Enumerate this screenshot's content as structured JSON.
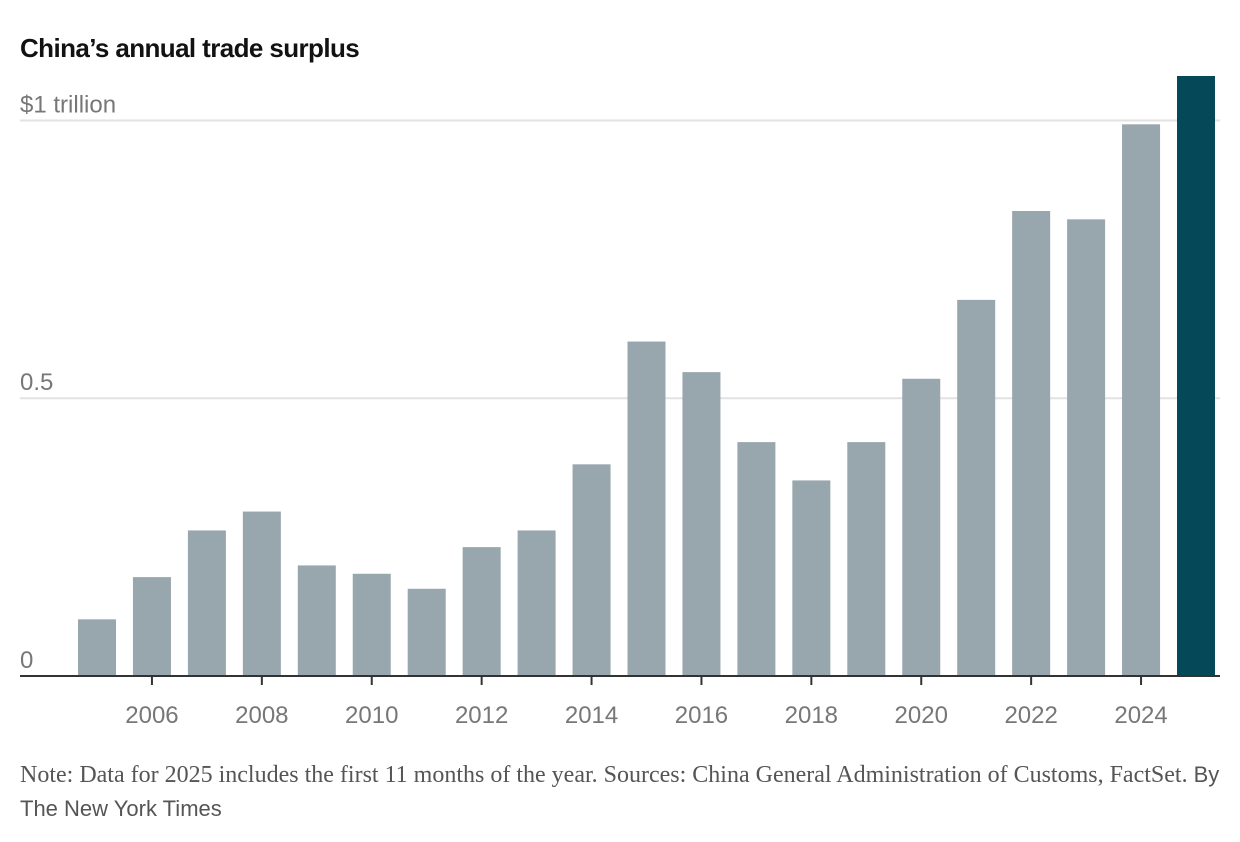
{
  "chart_data": {
    "type": "bar",
    "title": "China’s annual trade surplus",
    "xlabel": "",
    "ylabel": "",
    "categories": [
      "2005",
      "2006",
      "2007",
      "2008",
      "2009",
      "2010",
      "2011",
      "2012",
      "2013",
      "2014",
      "2015",
      "2016",
      "2017",
      "2018",
      "2019",
      "2020",
      "2021",
      "2022",
      "2023",
      "2024",
      "2025"
    ],
    "values": [
      0.102,
      0.178,
      0.262,
      0.296,
      0.199,
      0.184,
      0.157,
      0.232,
      0.262,
      0.381,
      0.602,
      0.547,
      0.421,
      0.352,
      0.421,
      0.535,
      0.677,
      0.837,
      0.822,
      0.993,
      1.08
    ],
    "highlight_category": "2025",
    "ylim": [
      0,
      1.08
    ],
    "y_ticks": [
      {
        "value": 0,
        "label": "0"
      },
      {
        "value": 0.5,
        "label": "0.5"
      },
      {
        "value": 1,
        "label": "$1 trillion"
      }
    ],
    "x_tick_labels": [
      "2006",
      "2008",
      "2010",
      "2012",
      "2014",
      "2016",
      "2018",
      "2020",
      "2022",
      "2024"
    ],
    "grid": true,
    "colors": {
      "bar": "#98a6ad",
      "highlight": "#054858",
      "grid": "#e2e2e2",
      "axis": "#333333",
      "tick_label": "#777777"
    }
  },
  "footer": {
    "note": "Note: Data for 2025 includes the first 11 months of the year.  Sources: China General Administration of Customs, FactSet.",
    "byline": "By The New York Times"
  }
}
